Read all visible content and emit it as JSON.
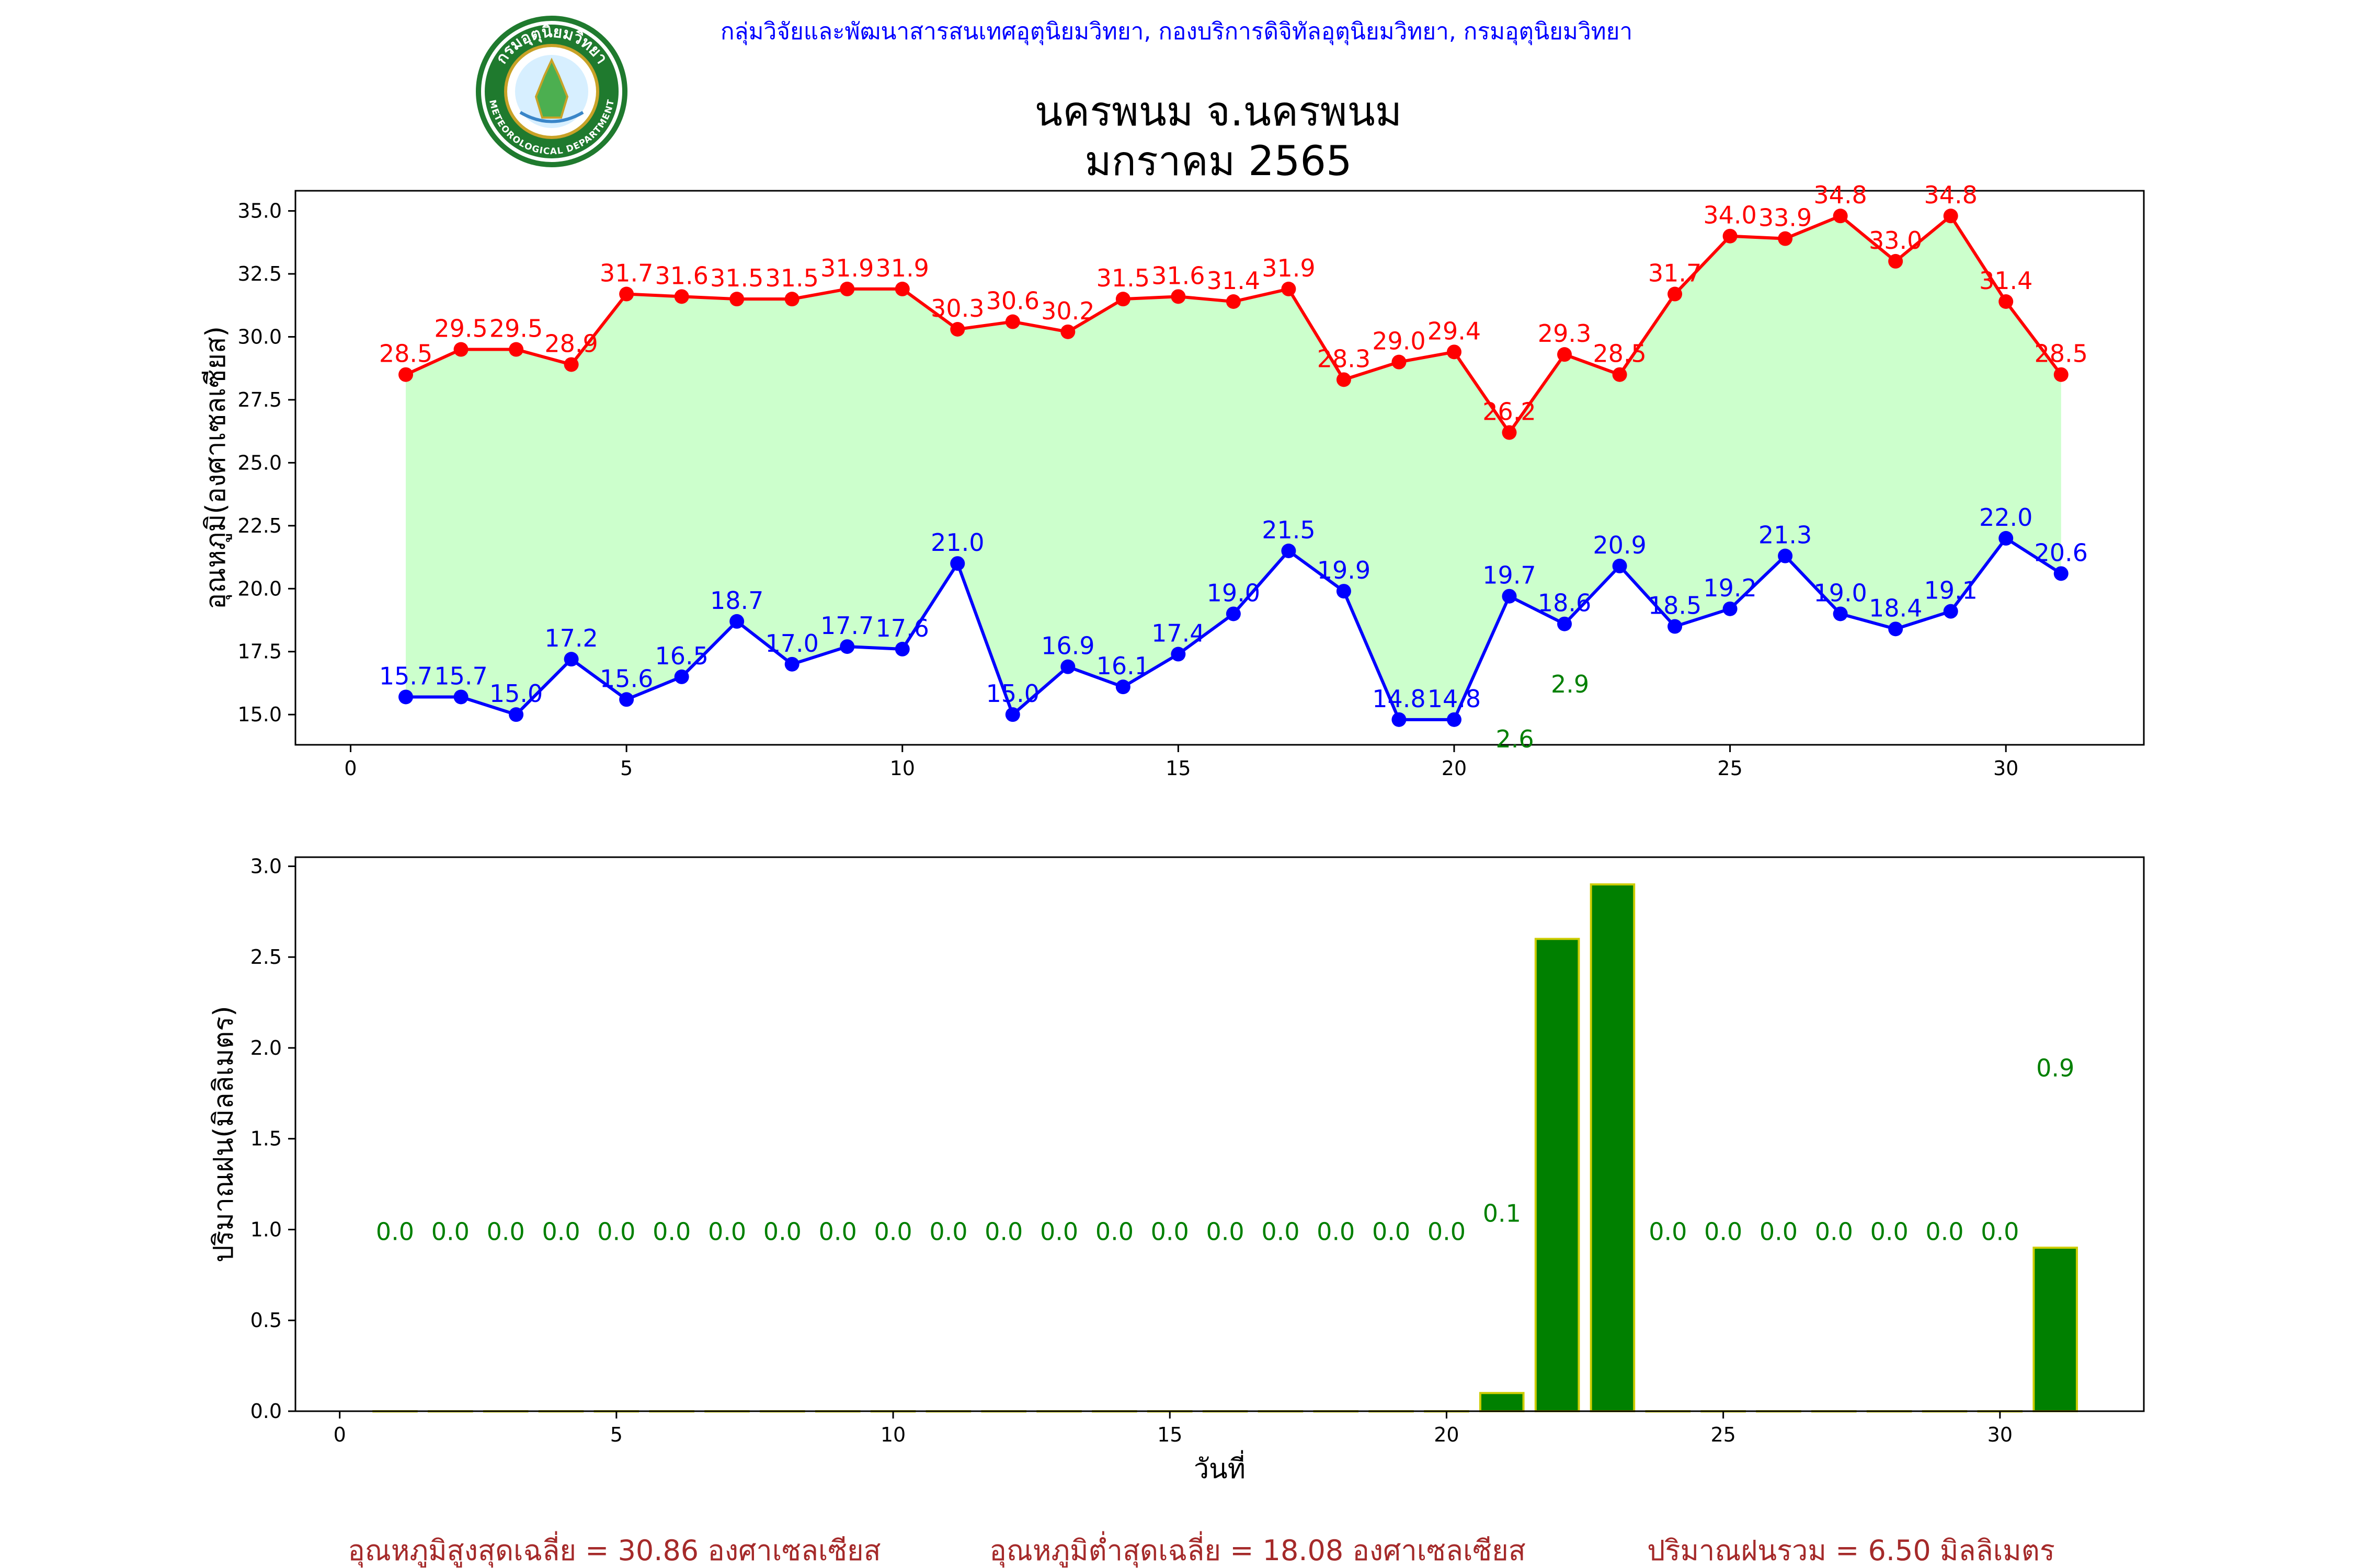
{
  "header": {
    "org_line": "กลุ่มวิจัยและพัฒนาสารสนเทศอุตุนิยมวิทยา, กองบริการดิจิทัลอุตุนิยมวิทยา, กรมอุตุนิยมวิทยา",
    "title_line1": "นครพนม จ.นครพนม",
    "title_line2": "มกราคม 2565"
  },
  "logo": {
    "top_text": "กรมอุตุนิยมวิทยา",
    "bottom_text": "METEOROLOGICAL DEPARTMENT",
    "ring_color": "#1f7a2e",
    "center_color": "#4caf50"
  },
  "colors": {
    "max_temp": "#ff0000",
    "min_temp": "#0000ff",
    "fill": "#ccffcc",
    "rain_bar": "#008000",
    "rain_edge": "#cccc00",
    "rain_label": "#008000",
    "footer": "#a52a2a"
  },
  "chart_data": [
    {
      "type": "line",
      "title": "",
      "xlabel": "",
      "ylabel": "อุณหภูมิ(องศาเซลเซียส)",
      "xlim": [
        -1,
        32.5
      ],
      "ylim": [
        13.8,
        35.8
      ],
      "xticks": [
        0,
        5,
        10,
        15,
        20,
        25,
        30
      ],
      "yticks": [
        "15.0",
        "17.5",
        "20.0",
        "22.5",
        "25.0",
        "27.5",
        "30.0",
        "32.5",
        "35.0"
      ],
      "x": [
        1,
        2,
        3,
        4,
        5,
        6,
        7,
        8,
        9,
        10,
        11,
        12,
        13,
        14,
        15,
        16,
        17,
        18,
        19,
        20,
        21,
        22,
        23,
        24,
        25,
        26,
        27,
        28,
        29,
        30,
        31
      ],
      "series": [
        {
          "key": "max",
          "values": [
            28.5,
            29.5,
            29.5,
            28.9,
            31.7,
            31.6,
            31.5,
            31.5,
            31.9,
            31.9,
            30.3,
            30.6,
            30.2,
            31.5,
            31.6,
            31.4,
            31.9,
            28.3,
            29.0,
            29.4,
            26.2,
            29.3,
            28.5,
            31.7,
            34.0,
            33.9,
            34.8,
            33.0,
            34.8,
            31.4,
            28.5
          ]
        },
        {
          "key": "min",
          "values": [
            15.7,
            15.7,
            15.0,
            17.2,
            15.6,
            16.5,
            18.7,
            17.0,
            17.7,
            17.6,
            21.0,
            15.0,
            16.9,
            16.1,
            17.4,
            19.0,
            21.5,
            19.9,
            14.8,
            14.8,
            19.7,
            18.6,
            20.9,
            18.5,
            19.2,
            21.3,
            19.0,
            18.4,
            19.1,
            22.0,
            20.6
          ]
        }
      ],
      "overflow_labels": [
        {
          "x": 22,
          "value": "2.9"
        },
        {
          "x": 21,
          "value": "2.6"
        }
      ]
    },
    {
      "type": "bar",
      "title": "",
      "xlabel": "วันที่",
      "ylabel": "ปริมาณฝน(มิลลิเมตร)",
      "xlim": [
        -0.8,
        32.6
      ],
      "ylim": [
        0,
        3.05
      ],
      "xticks": [
        0,
        5,
        10,
        15,
        20,
        25,
        30
      ],
      "yticks": [
        "0.0",
        "0.5",
        "1.0",
        "1.5",
        "2.0",
        "2.5",
        "3.0"
      ],
      "categories": [
        1,
        2,
        3,
        4,
        5,
        6,
        7,
        8,
        9,
        10,
        11,
        12,
        13,
        14,
        15,
        16,
        17,
        18,
        19,
        20,
        21,
        22,
        23,
        24,
        25,
        26,
        27,
        28,
        29,
        30,
        31
      ],
      "values": [
        0,
        0,
        0,
        0,
        0,
        0,
        0,
        0,
        0,
        0,
        0,
        0,
        0,
        0,
        0,
        0,
        0,
        0,
        0,
        0,
        0.1,
        2.6,
        2.9,
        0,
        0,
        0,
        0,
        0,
        0,
        0,
        0.9
      ],
      "labels": [
        "0.0",
        "0.0",
        "0.0",
        "0.0",
        "0.0",
        "0.0",
        "0.0",
        "0.0",
        "0.0",
        "0.0",
        "0.0",
        "0.0",
        "0.0",
        "0.0",
        "0.0",
        "0.0",
        "0.0",
        "0.0",
        "0.0",
        "0.0",
        "0.1",
        "",
        "",
        "0.0",
        "0.0",
        "0.0",
        "0.0",
        "0.0",
        "0.0",
        "0.0",
        "0.9"
      ]
    }
  ],
  "footer": {
    "avg_max": "อุณหภูมิสูงสุดเฉลี่ย = 30.86 องศาเซลเซียส",
    "avg_min": "อุณหภูมิต่ำสุดเฉลี่ย = 18.08 องศาเซลเซียส",
    "rain_total": "ปริมาณฝนรวม = 6.50 มิลลิเมตร"
  }
}
